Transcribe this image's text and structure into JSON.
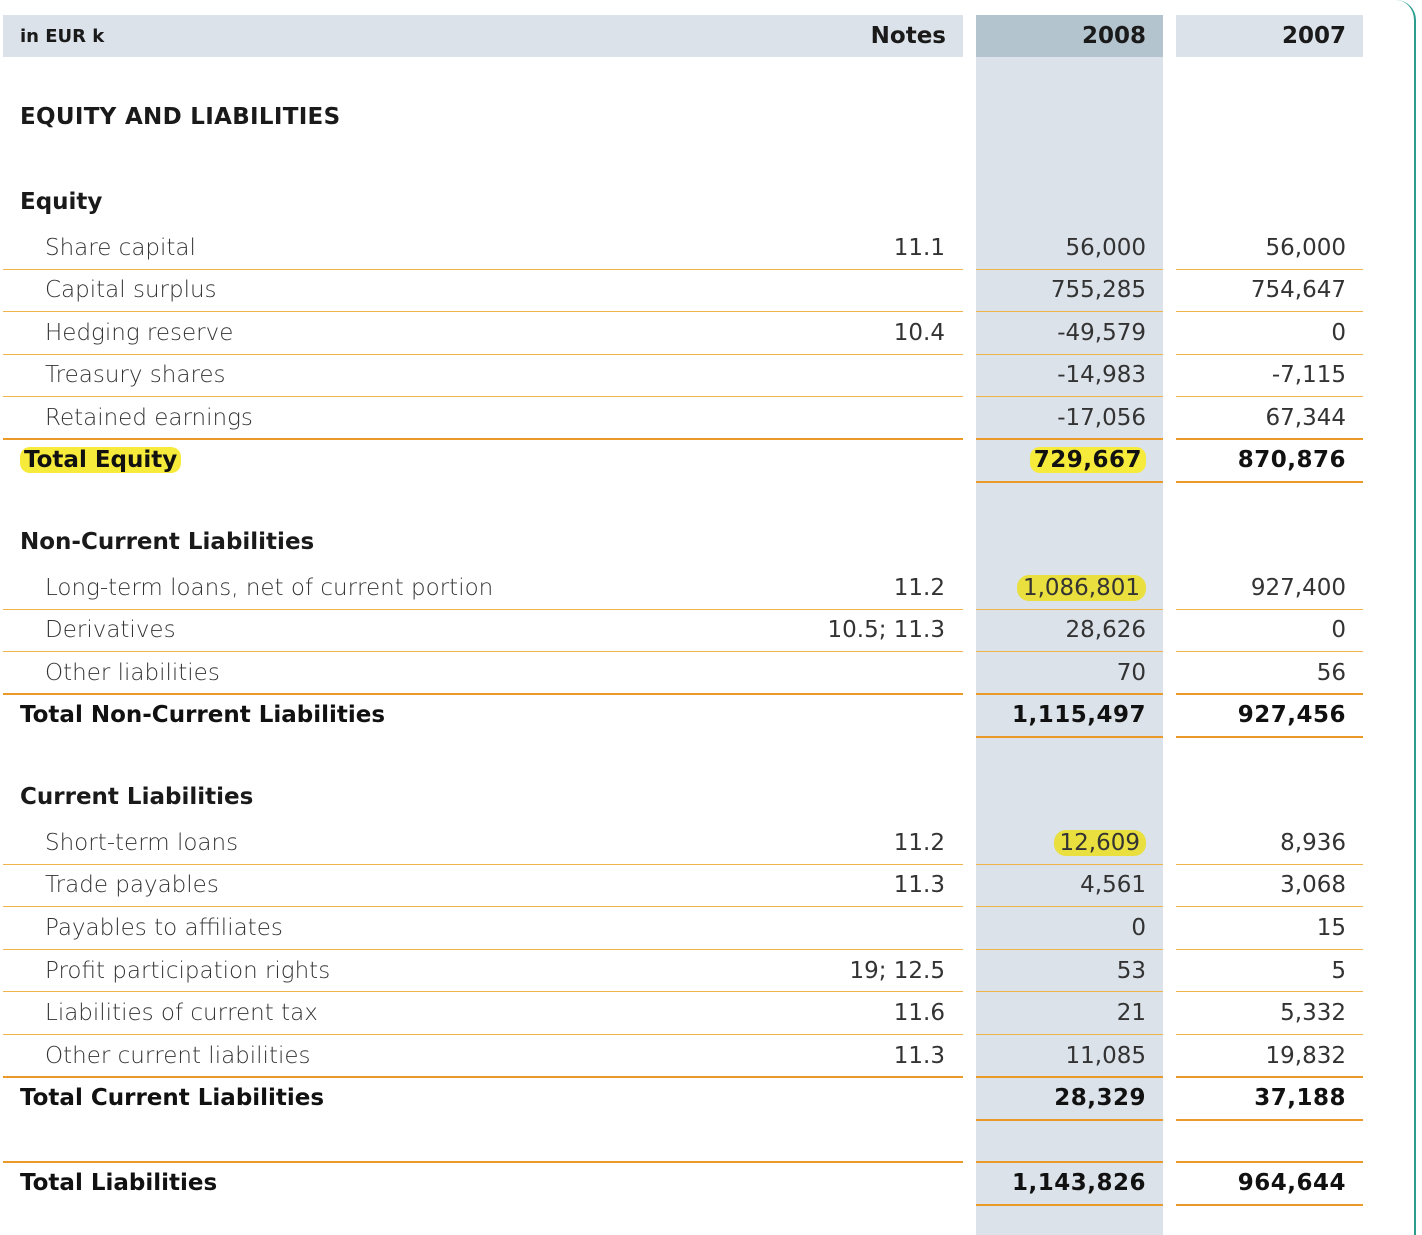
{
  "header": {
    "unit_label": "in EUR k",
    "notes_label": "Notes",
    "year_current": "2008",
    "year_prior": "2007"
  },
  "title": "EQUITY AND LIABILITIES",
  "equity": {
    "heading": "Equity",
    "rows": [
      {
        "label": "Share capital",
        "note": "11.1",
        "v2008": "56,000",
        "v2007": "56,000"
      },
      {
        "label": "Capital surplus",
        "note": "",
        "v2008": "755,285",
        "v2007": "754,647"
      },
      {
        "label": "Hedging reserve",
        "note": "10.4",
        "v2008": "-49,579",
        "v2007": "0"
      },
      {
        "label": "Treasury shares",
        "note": "",
        "v2008": "-14,983",
        "v2007": "-7,115"
      },
      {
        "label": "Retained earnings",
        "note": "",
        "v2008": "-17,056",
        "v2007": "67,344"
      }
    ],
    "total": {
      "label": "Total Equity",
      "v2008": "729,667",
      "v2007": "870,876"
    }
  },
  "non_current": {
    "heading": "Non-Current Liabilities",
    "rows": [
      {
        "label": "Long-term loans, net of current portion",
        "note": "11.2",
        "v2008": "1,086,801",
        "v2007": "927,400"
      },
      {
        "label": "Derivatives",
        "note": "10.5; 11.3",
        "v2008": "28,626",
        "v2007": "0"
      },
      {
        "label": "Other liabilities",
        "note": "",
        "v2008": "70",
        "v2007": "56"
      }
    ],
    "total": {
      "label": "Total Non-Current Liabilities",
      "v2008": "1,115,497",
      "v2007": "927,456"
    }
  },
  "current": {
    "heading": "Current Liabilities",
    "rows": [
      {
        "label": "Short-term loans",
        "note": "11.2",
        "v2008": "12,609",
        "v2007": "8,936"
      },
      {
        "label": "Trade payables",
        "note": "11.3",
        "v2008": "4,561",
        "v2007": "3,068"
      },
      {
        "label": "Payables to affiliates",
        "note": "",
        "v2008": "0",
        "v2007": "15"
      },
      {
        "label": "Profit participation rights",
        "note": "19; 12.5",
        "v2008": "53",
        "v2007": "5"
      },
      {
        "label": "Liabilities of current tax",
        "note": "11.6",
        "v2008": "21",
        "v2007": "5,332"
      },
      {
        "label": "Other current liabilities",
        "note": "11.3",
        "v2008": "11,085",
        "v2007": "19,832"
      }
    ],
    "total": {
      "label": "Total Current Liabilities",
      "v2008": "28,329",
      "v2007": "37,188"
    }
  },
  "grand_total": {
    "label": "Total Liabilities",
    "v2008": "1,143,826",
    "v2007": "964,644"
  }
}
